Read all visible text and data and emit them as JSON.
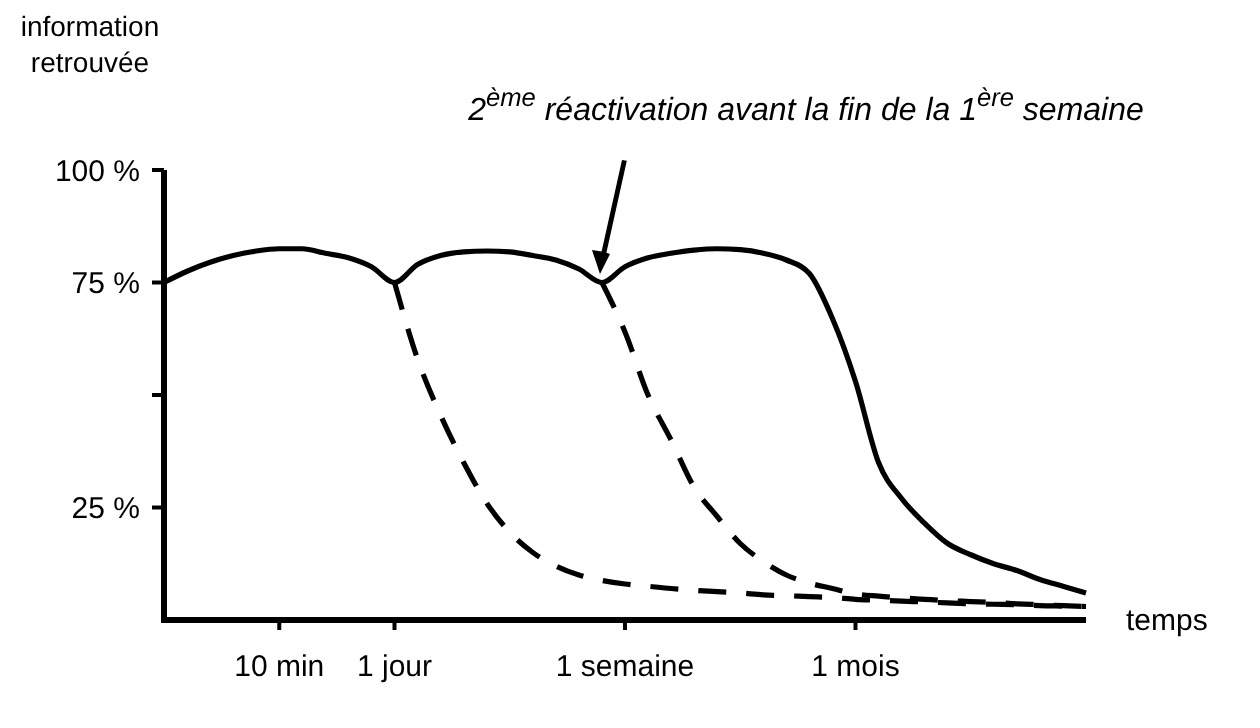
{
  "chart_data": {
    "type": "line",
    "ylabel": "information retrouvée",
    "xlabel": "temps",
    "annotations": [
      "2$^{ème}$ réactivation avant la fin de la 1$^{ère}$ semaine"
    ],
    "categories": [
      null,
      null,
      null,
      null,
      null,
      "10 min",
      null,
      null,
      null,
      null,
      "1 jour",
      null,
      null,
      null,
      null,
      null,
      null,
      null,
      null,
      null,
      "1 semaine",
      null,
      null,
      null,
      null,
      null,
      null,
      null,
      null,
      null,
      "1 mois",
      null,
      null,
      null,
      null,
      null,
      null,
      null,
      null,
      null,
      null
    ],
    "ylim": [
      0,
      100
    ],
    "yticks": [
      {
        "value": 100,
        "label": "100 %"
      },
      {
        "value": 75,
        "label": "75 %"
      },
      {
        "value": 50,
        "label": null
      },
      {
        "value": 25,
        "label": "25 %"
      }
    ],
    "grid": false,
    "marker": "none",
    "series": [
      {
        "color": "#000000",
        "line_style": "solid",
        "values": [
          75,
          77.5,
          79.5,
          81,
          82,
          82.5,
          82.5,
          81.5,
          80.5,
          78.5,
          75,
          79,
          81,
          81.8,
          82,
          81.8,
          81,
          80,
          78,
          75,
          78.5,
          80.5,
          81.5,
          82.2,
          82.5,
          82.3,
          81.5,
          80,
          77,
          67,
          53,
          35,
          27,
          21.5,
          17,
          14.5,
          12.5,
          11,
          9,
          7.5,
          6
        ]
      },
      {
        "color": "#000000",
        "line_style": "dashed",
        "values": [
          null,
          null,
          null,
          null,
          null,
          null,
          null,
          null,
          null,
          null,
          75,
          58,
          45.5,
          35,
          26,
          19.5,
          15,
          12,
          10,
          8.8,
          8,
          7.5,
          7,
          6.6,
          6.3,
          6,
          5.6,
          5.4,
          5.2,
          5,
          4.6,
          4.4,
          4.2,
          4,
          3.8,
          3.6,
          3.5,
          3.4,
          3.2,
          3.1,
          3
        ]
      },
      {
        "color": "#000000",
        "line_style": "dashed",
        "values": [
          null,
          null,
          null,
          null,
          null,
          null,
          null,
          null,
          null,
          null,
          null,
          null,
          null,
          null,
          null,
          null,
          null,
          null,
          null,
          75,
          64,
          50,
          40,
          29.5,
          23,
          17,
          13,
          10,
          8.2,
          7,
          5.8,
          5.3,
          4.9,
          4.6,
          4.3,
          4.1,
          3.9,
          3.6,
          3.4,
          3.2,
          3
        ]
      }
    ]
  }
}
